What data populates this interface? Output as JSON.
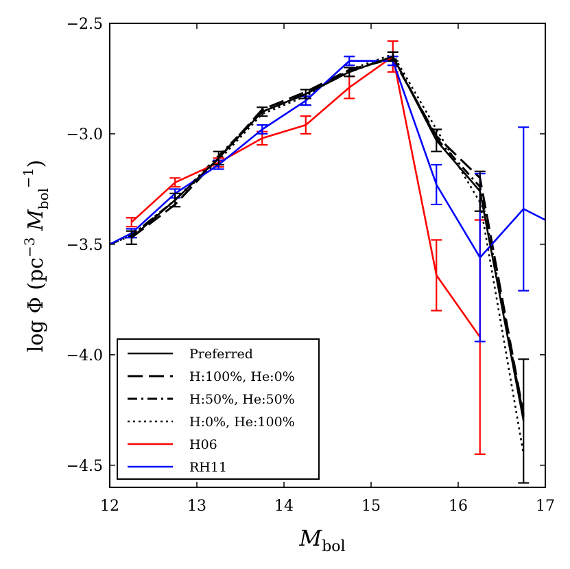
{
  "chart_data": {
    "type": "line",
    "xlabel": "M",
    "xlabel_sub": "bol",
    "ylabel": "log Φ (pc",
    "ylabel_sup1": "−3",
    "ylabel_mid": " M",
    "ylabel_sub": "bol",
    "ylabel_sup2": "−1",
    "ylabel_end": ")",
    "xlim": [
      12,
      17
    ],
    "ylim": [
      -4.6,
      -2.5
    ],
    "xticks": [
      12,
      13,
      14,
      15,
      16,
      17
    ],
    "xtick_labels": [
      "12",
      "13",
      "14",
      "15",
      "16",
      "17"
    ],
    "yticks": [
      -2.5,
      -3.0,
      -3.5,
      -4.0,
      -4.5
    ],
    "ytick_labels": [
      "−2.5",
      "−3.0",
      "−3.5",
      "−4.0",
      "−4.5"
    ],
    "legend_position": "lower-left",
    "series": [
      {
        "name": "Preferred",
        "color": "#000000",
        "dash": "solid",
        "x": [
          12.25,
          12.75,
          13.25,
          13.75,
          14.25,
          14.75,
          15.25,
          15.75,
          16.25,
          16.75
        ],
        "y": [
          -3.47,
          -3.3,
          -3.11,
          -2.9,
          -2.82,
          -2.72,
          -2.65,
          -3.03,
          -3.26,
          -4.3
        ],
        "err": [
          0.03,
          0.03,
          0.03,
          0.02,
          0.02,
          0.02,
          0.02,
          0.05,
          0.09,
          0.28
        ]
      },
      {
        "name": "H:100%, He:0%",
        "color": "#000000",
        "dash": "dashed",
        "x": [
          12.25,
          12.75,
          13.25,
          13.75,
          14.25,
          14.75,
          15.25,
          15.75,
          16.25,
          16.75
        ],
        "y": [
          -3.47,
          -3.32,
          -3.11,
          -2.89,
          -2.81,
          -2.71,
          -2.66,
          -3.01,
          -3.2,
          -4.27
        ],
        "err": []
      },
      {
        "name": "H:50%, He:50%",
        "color": "#000000",
        "dash": "dashdot",
        "x": [
          12.0,
          12.25,
          12.75,
          13.25,
          13.75,
          14.25,
          14.75,
          15.25,
          15.75,
          16.25,
          16.75
        ],
        "y": [
          -3.5,
          -3.46,
          -3.3,
          -3.1,
          -2.9,
          -2.82,
          -2.72,
          -2.65,
          -3.02,
          -3.24,
          -4.28
        ],
        "err": []
      },
      {
        "name": "H:0%, He:100%",
        "color": "#000000",
        "dash": "dotted",
        "x": [
          12.0,
          12.25,
          12.75,
          13.25,
          13.75,
          14.25,
          14.75,
          15.25,
          15.75,
          16.25,
          16.75
        ],
        "y": [
          -3.5,
          -3.46,
          -3.3,
          -3.12,
          -2.91,
          -2.83,
          -2.71,
          -2.64,
          -2.98,
          -3.31,
          -4.45
        ],
        "err": []
      },
      {
        "name": "H06",
        "color": "#ff0000",
        "dash": "solid",
        "x": [
          12.25,
          12.75,
          13.25,
          13.75,
          14.25,
          14.75,
          15.25,
          15.75,
          16.25
        ],
        "y": [
          -3.4,
          -3.22,
          -3.13,
          -3.02,
          -2.96,
          -2.79,
          -2.65,
          -3.64,
          -3.92
        ],
        "err": [
          0.02,
          0.02,
          0.02,
          0.03,
          0.04,
          0.05,
          0.07,
          0.16,
          0.53
        ]
      },
      {
        "name": "RH11",
        "color": "#0000ff",
        "dash": "solid",
        "x": [
          12.0,
          12.25,
          12.75,
          13.25,
          13.75,
          14.25,
          14.75,
          15.25,
          15.75,
          16.25,
          16.75,
          17.0
        ],
        "y": [
          -3.5,
          -3.45,
          -3.27,
          -3.14,
          -2.98,
          -2.85,
          -2.67,
          -2.67,
          -3.23,
          -3.56,
          -3.34,
          -3.39
        ],
        "err": [
          null,
          0.02,
          0.02,
          0.02,
          0.02,
          0.02,
          0.02,
          0.02,
          0.09,
          0.38,
          0.37,
          null
        ]
      }
    ]
  }
}
